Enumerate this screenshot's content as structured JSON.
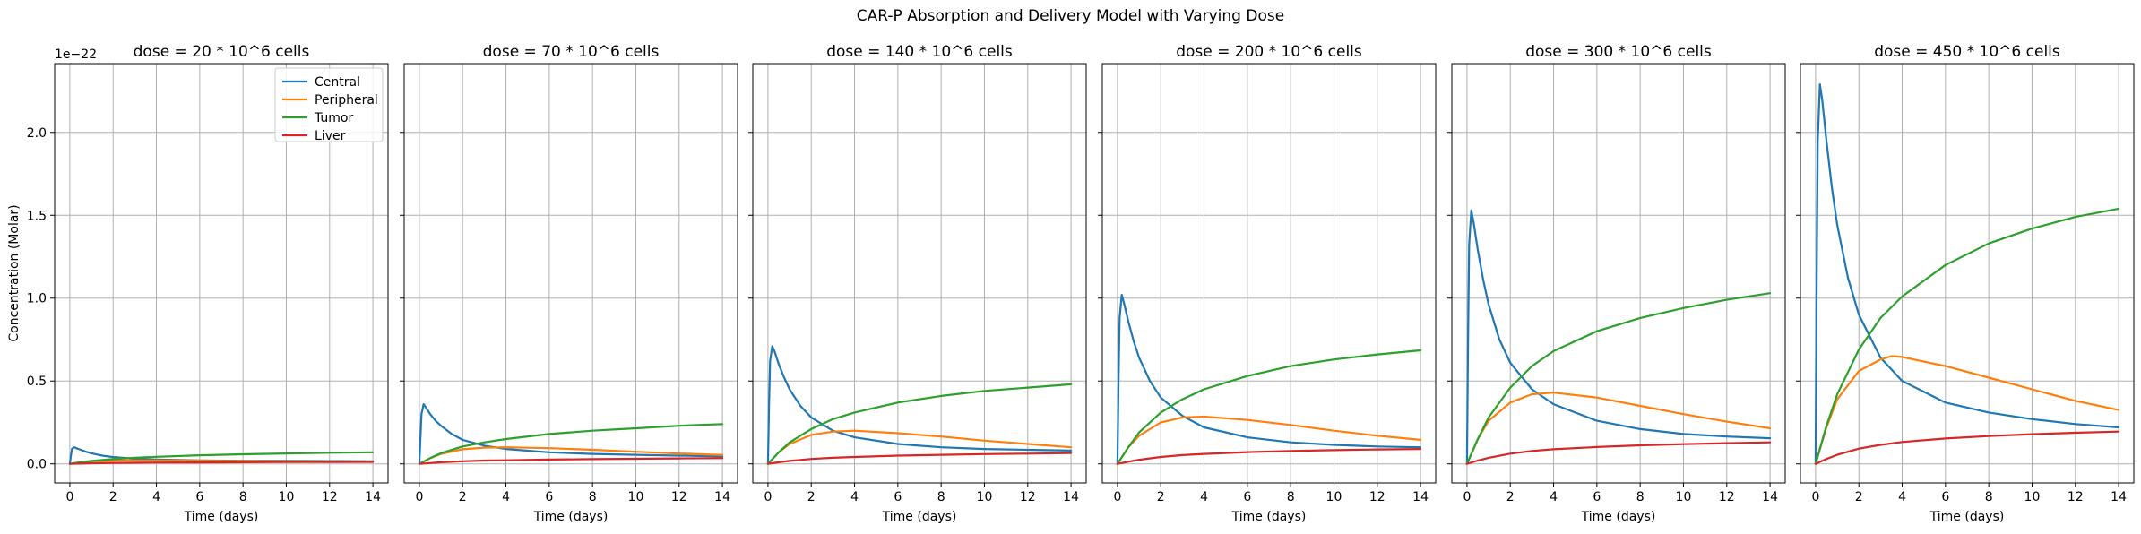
{
  "figure": {
    "title": "CAR-P Absorption and Delivery Model with Varying Dose"
  },
  "chart_data": [
    {
      "type": "line",
      "title": "dose = 20 * 10^6 cells",
      "xlabel": "Time (days)",
      "ylabel": "Concentration (Molar)",
      "y_offset_text": "1e−22",
      "xlim": [
        -0.7,
        14.7
      ],
      "ylim": [
        -0.115,
        2.415
      ],
      "xticks": [
        0,
        2,
        4,
        6,
        8,
        10,
        12,
        14
      ],
      "yticks": [
        0.0,
        0.5,
        1.0,
        1.5,
        2.0
      ],
      "ytick_labels": [
        "0.0",
        "0.5",
        "1.0",
        "1.5",
        "2.0"
      ],
      "grid": true,
      "legend": "top-right",
      "series": [
        {
          "name": "Central",
          "color": "#1f77b4",
          "x": [
            0,
            0.05,
            0.1,
            0.2,
            0.3,
            0.5,
            0.75,
            1,
            1.5,
            2,
            3,
            4,
            6,
            8,
            10,
            12,
            14
          ],
          "values": [
            0,
            0.05,
            0.09,
            0.1,
            0.095,
            0.085,
            0.073,
            0.064,
            0.05,
            0.041,
            0.031,
            0.026,
            0.021,
            0.019,
            0.018,
            0.017,
            0.016
          ]
        },
        {
          "name": "Peripheral",
          "color": "#ff7f0e",
          "x": [
            0,
            0.5,
            1,
            2,
            3,
            4,
            6,
            8,
            10,
            12,
            14
          ],
          "values": [
            0,
            0.01,
            0.016,
            0.02,
            0.021,
            0.021,
            0.019,
            0.017,
            0.015,
            0.013,
            0.012
          ]
        },
        {
          "name": "Tumor",
          "color": "#2ca02c",
          "x": [
            0,
            0.5,
            1,
            2,
            3,
            4,
            6,
            8,
            10,
            12,
            14
          ],
          "values": [
            0,
            0.01,
            0.018,
            0.029,
            0.037,
            0.043,
            0.052,
            0.058,
            0.063,
            0.067,
            0.07
          ]
        },
        {
          "name": "Liver",
          "color": "#d62728",
          "x": [
            0,
            0.5,
            1,
            2,
            3,
            4,
            6,
            8,
            10,
            12,
            14
          ],
          "values": [
            0,
            0.002,
            0.004,
            0.006,
            0.007,
            0.008,
            0.009,
            0.01,
            0.011,
            0.011,
            0.012
          ]
        }
      ]
    },
    {
      "type": "line",
      "title": "dose = 70 * 10^6 cells",
      "xlabel": "Time (days)",
      "xlim": [
        -0.7,
        14.7
      ],
      "ylim": [
        -0.115,
        2.415
      ],
      "xticks": [
        0,
        2,
        4,
        6,
        8,
        10,
        12,
        14
      ],
      "yticks": [
        0.0,
        0.5,
        1.0,
        1.5,
        2.0
      ],
      "grid": true,
      "series": [
        {
          "name": "Central",
          "color": "#1f77b4",
          "x": [
            0,
            0.05,
            0.1,
            0.2,
            0.3,
            0.5,
            0.75,
            1,
            1.5,
            2,
            3,
            4,
            6,
            8,
            10,
            12,
            14
          ],
          "values": [
            0,
            0.15,
            0.3,
            0.36,
            0.34,
            0.3,
            0.26,
            0.23,
            0.18,
            0.145,
            0.11,
            0.09,
            0.07,
            0.06,
            0.055,
            0.05,
            0.045
          ]
        },
        {
          "name": "Peripheral",
          "color": "#ff7f0e",
          "x": [
            0,
            0.5,
            1,
            2,
            3,
            4,
            6,
            8,
            10,
            12,
            14
          ],
          "values": [
            0,
            0.035,
            0.06,
            0.088,
            0.098,
            0.1,
            0.095,
            0.085,
            0.073,
            0.063,
            0.053
          ]
        },
        {
          "name": "Tumor",
          "color": "#2ca02c",
          "x": [
            0,
            0.5,
            1,
            2,
            3,
            4,
            6,
            8,
            10,
            12,
            14
          ],
          "values": [
            0,
            0.035,
            0.065,
            0.105,
            0.13,
            0.15,
            0.18,
            0.2,
            0.215,
            0.23,
            0.24
          ]
        },
        {
          "name": "Liver",
          "color": "#d62728",
          "x": [
            0,
            0.5,
            1,
            2,
            3,
            4,
            6,
            8,
            10,
            12,
            14
          ],
          "values": [
            0,
            0.005,
            0.01,
            0.016,
            0.02,
            0.022,
            0.026,
            0.029,
            0.031,
            0.033,
            0.035
          ]
        }
      ]
    },
    {
      "type": "line",
      "title": "dose = 140 * 10^6 cells",
      "xlabel": "Time (days)",
      "xlim": [
        -0.7,
        14.7
      ],
      "ylim": [
        -0.115,
        2.415
      ],
      "xticks": [
        0,
        2,
        4,
        6,
        8,
        10,
        12,
        14
      ],
      "yticks": [
        0.0,
        0.5,
        1.0,
        1.5,
        2.0
      ],
      "grid": true,
      "series": [
        {
          "name": "Central",
          "color": "#1f77b4",
          "x": [
            0,
            0.05,
            0.1,
            0.2,
            0.3,
            0.5,
            0.75,
            1,
            1.5,
            2,
            3,
            4,
            6,
            8,
            10,
            12,
            14
          ],
          "values": [
            0,
            0.35,
            0.62,
            0.71,
            0.68,
            0.6,
            0.52,
            0.45,
            0.35,
            0.28,
            0.2,
            0.16,
            0.12,
            0.1,
            0.09,
            0.085,
            0.08
          ]
        },
        {
          "name": "Peripheral",
          "color": "#ff7f0e",
          "x": [
            0,
            0.5,
            1,
            2,
            3,
            4,
            6,
            8,
            10,
            12,
            14
          ],
          "values": [
            0,
            0.07,
            0.12,
            0.175,
            0.195,
            0.2,
            0.185,
            0.165,
            0.14,
            0.12,
            0.1
          ]
        },
        {
          "name": "Tumor",
          "color": "#2ca02c",
          "x": [
            0,
            0.5,
            1,
            2,
            3,
            4,
            6,
            8,
            10,
            12,
            14
          ],
          "values": [
            0,
            0.07,
            0.13,
            0.21,
            0.27,
            0.31,
            0.37,
            0.41,
            0.44,
            0.46,
            0.48
          ]
        },
        {
          "name": "Liver",
          "color": "#d62728",
          "x": [
            0,
            0.5,
            1,
            2,
            3,
            4,
            6,
            8,
            10,
            12,
            14
          ],
          "values": [
            0,
            0.01,
            0.018,
            0.03,
            0.037,
            0.042,
            0.05,
            0.055,
            0.059,
            0.062,
            0.065
          ]
        }
      ]
    },
    {
      "type": "line",
      "title": "dose = 200 * 10^6 cells",
      "xlabel": "Time (days)",
      "xlim": [
        -0.7,
        14.7
      ],
      "ylim": [
        -0.115,
        2.415
      ],
      "xticks": [
        0,
        2,
        4,
        6,
        8,
        10,
        12,
        14
      ],
      "yticks": [
        0.0,
        0.5,
        1.0,
        1.5,
        2.0
      ],
      "grid": true,
      "series": [
        {
          "name": "Central",
          "color": "#1f77b4",
          "x": [
            0,
            0.05,
            0.1,
            0.2,
            0.3,
            0.5,
            0.75,
            1,
            1.5,
            2,
            3,
            4,
            6,
            8,
            10,
            12,
            14
          ],
          "values": [
            0,
            0.5,
            0.88,
            1.02,
            0.97,
            0.86,
            0.74,
            0.64,
            0.5,
            0.4,
            0.29,
            0.22,
            0.16,
            0.13,
            0.115,
            0.105,
            0.1
          ]
        },
        {
          "name": "Peripheral",
          "color": "#ff7f0e",
          "x": [
            0,
            0.5,
            1,
            2,
            3,
            4,
            6,
            8,
            10,
            12,
            14
          ],
          "values": [
            0,
            0.1,
            0.17,
            0.25,
            0.28,
            0.285,
            0.265,
            0.235,
            0.2,
            0.17,
            0.145
          ]
        },
        {
          "name": "Tumor",
          "color": "#2ca02c",
          "x": [
            0,
            0.5,
            1,
            2,
            3,
            4,
            6,
            8,
            10,
            12,
            14
          ],
          "values": [
            0,
            0.1,
            0.19,
            0.31,
            0.39,
            0.45,
            0.53,
            0.59,
            0.63,
            0.66,
            0.685
          ]
        },
        {
          "name": "Liver",
          "color": "#d62728",
          "x": [
            0,
            0.5,
            1,
            2,
            3,
            4,
            6,
            8,
            10,
            12,
            14
          ],
          "values": [
            0,
            0.013,
            0.025,
            0.042,
            0.053,
            0.06,
            0.071,
            0.078,
            0.083,
            0.087,
            0.09
          ]
        }
      ]
    },
    {
      "type": "line",
      "title": "dose = 300 * 10^6 cells",
      "xlabel": "Time (days)",
      "xlim": [
        -0.7,
        14.7
      ],
      "ylim": [
        -0.115,
        2.415
      ],
      "xticks": [
        0,
        2,
        4,
        6,
        8,
        10,
        12,
        14
      ],
      "yticks": [
        0.0,
        0.5,
        1.0,
        1.5,
        2.0
      ],
      "grid": true,
      "series": [
        {
          "name": "Central",
          "color": "#1f77b4",
          "x": [
            0,
            0.05,
            0.1,
            0.2,
            0.3,
            0.5,
            0.75,
            1,
            1.5,
            2,
            3,
            4,
            6,
            8,
            10,
            12,
            14
          ],
          "values": [
            0,
            0.75,
            1.32,
            1.53,
            1.46,
            1.29,
            1.11,
            0.96,
            0.75,
            0.61,
            0.45,
            0.36,
            0.26,
            0.21,
            0.18,
            0.165,
            0.155
          ]
        },
        {
          "name": "Peripheral",
          "color": "#ff7f0e",
          "x": [
            0,
            0.5,
            1,
            2,
            3,
            4,
            6,
            8,
            10,
            12,
            14
          ],
          "values": [
            0,
            0.15,
            0.26,
            0.37,
            0.42,
            0.43,
            0.4,
            0.35,
            0.3,
            0.255,
            0.215
          ]
        },
        {
          "name": "Tumor",
          "color": "#2ca02c",
          "x": [
            0,
            0.5,
            1,
            2,
            3,
            4,
            6,
            8,
            10,
            12,
            14
          ],
          "values": [
            0,
            0.15,
            0.28,
            0.46,
            0.59,
            0.68,
            0.8,
            0.88,
            0.94,
            0.99,
            1.03
          ]
        },
        {
          "name": "Liver",
          "color": "#d62728",
          "x": [
            0,
            0.5,
            1,
            2,
            3,
            4,
            6,
            8,
            10,
            12,
            14
          ],
          "values": [
            0,
            0.02,
            0.037,
            0.062,
            0.078,
            0.088,
            0.102,
            0.112,
            0.119,
            0.125,
            0.13
          ]
        }
      ]
    },
    {
      "type": "line",
      "title": "dose = 450 * 10^6 cells",
      "xlabel": "Time (days)",
      "xlim": [
        -0.7,
        14.7
      ],
      "ylim": [
        -0.115,
        2.415
      ],
      "xticks": [
        0,
        2,
        4,
        6,
        8,
        10,
        12,
        14
      ],
      "yticks": [
        0.0,
        0.5,
        1.0,
        1.5,
        2.0
      ],
      "grid": true,
      "series": [
        {
          "name": "Central",
          "color": "#1f77b4",
          "x": [
            0,
            0.05,
            0.1,
            0.2,
            0.3,
            0.5,
            0.75,
            1,
            1.5,
            2,
            3,
            4,
            6,
            8,
            10,
            12,
            14
          ],
          "values": [
            0,
            1.1,
            1.95,
            2.29,
            2.2,
            1.95,
            1.67,
            1.44,
            1.12,
            0.9,
            0.64,
            0.5,
            0.37,
            0.31,
            0.27,
            0.24,
            0.22
          ]
        },
        {
          "name": "Peripheral",
          "color": "#ff7f0e",
          "x": [
            0,
            0.5,
            1,
            2,
            3,
            3.5,
            4,
            6,
            8,
            10,
            12,
            14
          ],
          "values": [
            0,
            0.22,
            0.39,
            0.56,
            0.63,
            0.65,
            0.645,
            0.59,
            0.52,
            0.45,
            0.38,
            0.325
          ]
        },
        {
          "name": "Tumor",
          "color": "#2ca02c",
          "x": [
            0,
            0.5,
            1,
            2,
            3,
            4,
            6,
            8,
            10,
            12,
            14
          ],
          "values": [
            0,
            0.23,
            0.42,
            0.69,
            0.88,
            1.01,
            1.2,
            1.33,
            1.42,
            1.49,
            1.54
          ]
        },
        {
          "name": "Liver",
          "color": "#d62728",
          "x": [
            0,
            0.5,
            1,
            2,
            3,
            4,
            6,
            8,
            10,
            12,
            14
          ],
          "values": [
            0,
            0.03,
            0.055,
            0.092,
            0.115,
            0.132,
            0.153,
            0.168,
            0.179,
            0.188,
            0.195
          ]
        }
      ]
    }
  ]
}
